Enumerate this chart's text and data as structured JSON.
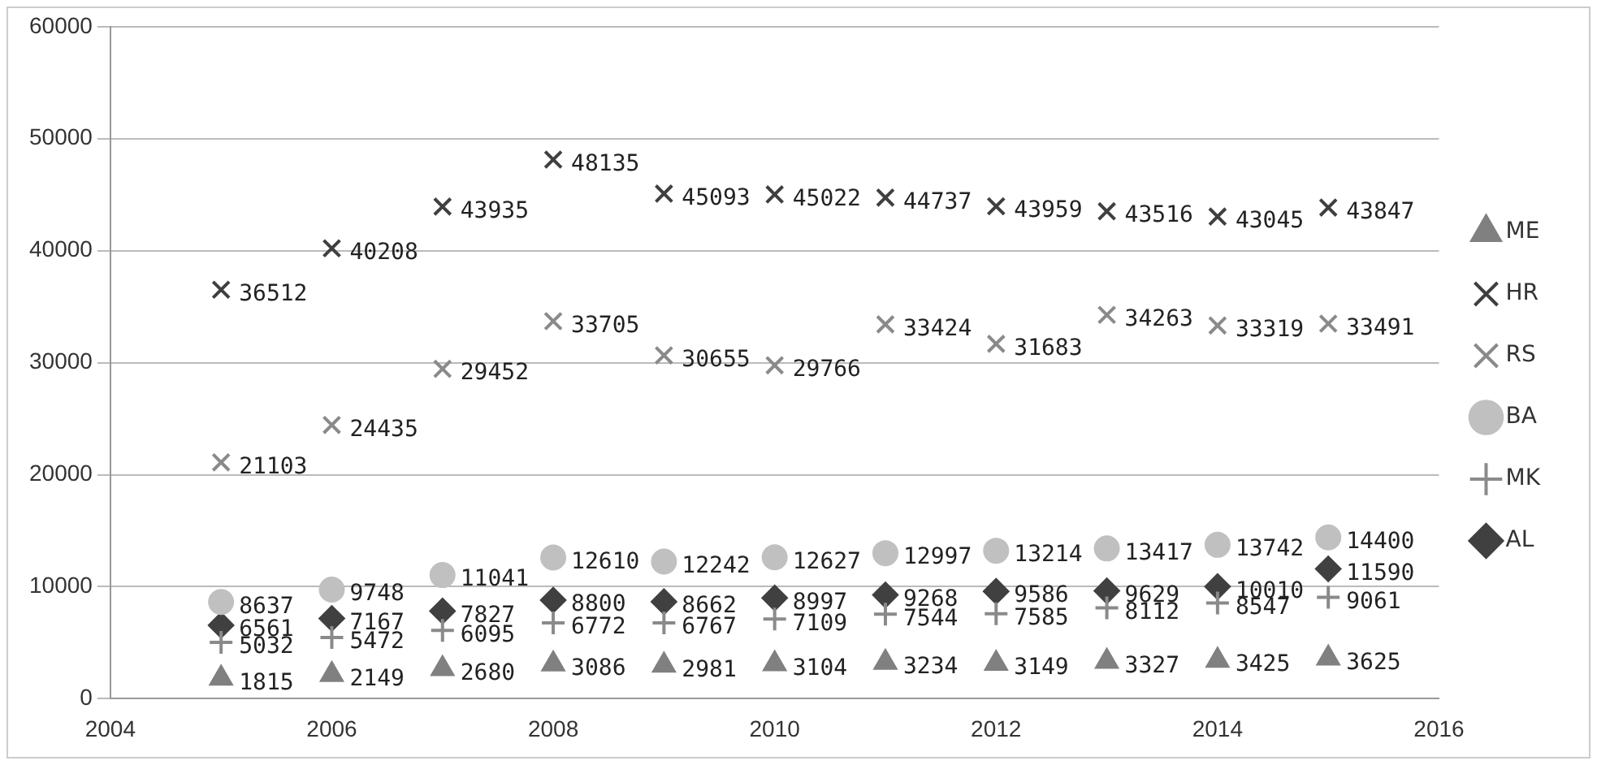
{
  "chart_data": {
    "type": "scatter",
    "x": [
      2005,
      2006,
      2007,
      2008,
      2009,
      2010,
      2011,
      2012,
      2013,
      2014,
      2015
    ],
    "series": [
      {
        "name": "ME",
        "color": "#808080",
        "marker": "triangle",
        "values": [
          1815,
          2149,
          2680,
          3086,
          2981,
          3104,
          3234,
          3149,
          3327,
          3425,
          3625
        ]
      },
      {
        "name": "HR",
        "color": "#3f3f3f",
        "marker": "cross",
        "values": [
          36512,
          40208,
          43935,
          48135,
          45093,
          45022,
          44737,
          43959,
          43516,
          43045,
          43847
        ]
      },
      {
        "name": "RS",
        "color": "#8a8a8a",
        "marker": "cross",
        "values": [
          21103,
          24435,
          29452,
          33705,
          30655,
          29766,
          33424,
          31683,
          34263,
          33319,
          33491
        ]
      },
      {
        "name": "BA",
        "color": "#c0c0c0",
        "marker": "circle",
        "values": [
          8637,
          9748,
          11041,
          12610,
          12242,
          12627,
          12997,
          13214,
          13417,
          13742,
          14400
        ]
      },
      {
        "name": "MK",
        "color": "#8a8a8a",
        "marker": "plus",
        "values": [
          5032,
          5472,
          6095,
          6772,
          6767,
          7109,
          7544,
          7585,
          8112,
          8547,
          9061
        ]
      },
      {
        "name": "AL",
        "color": "#404040",
        "marker": "diamond",
        "values": [
          6561,
          7167,
          7827,
          8800,
          8662,
          8997,
          9268,
          9586,
          9629,
          10010,
          11590
        ]
      }
    ],
    "xlim": [
      2004,
      2016
    ],
    "xticks": [
      2004,
      2006,
      2008,
      2010,
      2012,
      2014,
      2016
    ],
    "ylim": [
      0,
      60000
    ],
    "yticks": [
      0,
      10000,
      20000,
      30000,
      40000,
      50000,
      60000
    ],
    "grid": "y",
    "legend": "right",
    "data_labels": true
  }
}
